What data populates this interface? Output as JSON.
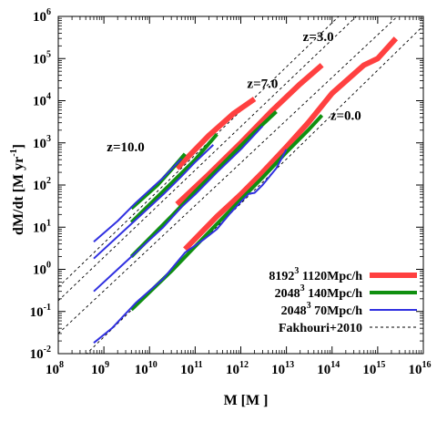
{
  "chart_data": {
    "type": "line",
    "xscale": "log",
    "yscale": "log",
    "xlim": [
      100000000.0,
      1e+16
    ],
    "ylim": [
      0.01,
      1000000.0
    ],
    "x_ticks": [
      {
        "base": "10",
        "exp": "8"
      },
      {
        "base": "10",
        "exp": "9"
      },
      {
        "base": "10",
        "exp": "10"
      },
      {
        "base": "10",
        "exp": "11"
      },
      {
        "base": "10",
        "exp": "12"
      },
      {
        "base": "10",
        "exp": "13"
      },
      {
        "base": "10",
        "exp": "14"
      },
      {
        "base": "10",
        "exp": "15"
      },
      {
        "base": "10",
        "exp": "16"
      }
    ],
    "y_ticks": [
      {
        "base": "10",
        "exp": "-2"
      },
      {
        "base": "10",
        "exp": "-1"
      },
      {
        "base": "10",
        "exp": "0"
      },
      {
        "base": "10",
        "exp": "1"
      },
      {
        "base": "10",
        "exp": "2"
      },
      {
        "base": "10",
        "exp": "3"
      },
      {
        "base": "10",
        "exp": "4"
      },
      {
        "base": "10",
        "exp": "5"
      },
      {
        "base": "10",
        "exp": "6"
      }
    ],
    "xlabel": "M [M  ]",
    "ylabel_main": "dM/dt [M   yr",
    "ylabel_exp": "-1",
    "ylabel_close": "]",
    "legend_position": "bottom-right",
    "annotations": [
      {
        "text": "z=10.0",
        "x": 3000000000.0,
        "y": 630
      },
      {
        "text": "z=7.0",
        "x": 3000000000000.0,
        "y": 20000
      },
      {
        "text": "z=3.0",
        "x": 50000000000000.0,
        "y": 260000
      },
      {
        "text": "z=0.0",
        "x": 200000000000000.0,
        "y": 3500
      }
    ],
    "legend": [
      {
        "base": "8192",
        "exp": "3",
        "rest": " 1120Mpc/h"
      },
      {
        "base": "2048",
        "exp": "3",
        "rest": " 140Mpc/h"
      },
      {
        "base": "2048",
        "exp": "3",
        "rest": " 70Mpc/h"
      },
      {
        "base": "",
        "exp": "",
        "rest": "Fakhouri+2010"
      }
    ],
    "series": [
      {
        "legend_index": 0,
        "color": "#ff4040",
        "width": 6,
        "dash": "",
        "redshift": "z=0.0",
        "points": [
          [
            60000000000.0,
            3.0
          ],
          [
            300000000000.0,
            18
          ],
          [
            1000000000000.0,
            60
          ],
          [
            3000000000000.0,
            200
          ],
          [
            10000000000000.0,
            800
          ],
          [
            30000000000000.0,
            3000
          ],
          [
            100000000000000.0,
            15000
          ],
          [
            500000000000000.0,
            70000
          ],
          [
            1000000000000000.0,
            100000
          ],
          [
            2500000000000000.0,
            300000
          ]
        ]
      },
      {
        "legend_index": 0,
        "color": "#ff4040",
        "width": 6,
        "dash": "",
        "redshift": "z=3.0",
        "points": [
          [
            40000000000.0,
            35
          ],
          [
            200000000000.0,
            180
          ],
          [
            1000000000000.0,
            1000
          ],
          [
            5000000000000.0,
            6000
          ],
          [
            20000000000000.0,
            25000
          ],
          [
            60000000000000.0,
            70000
          ]
        ]
      },
      {
        "legend_index": 0,
        "color": "#ff4040",
        "width": 6,
        "dash": "",
        "redshift": "z=7.0",
        "points": [
          [
            40000000000.0,
            250
          ],
          [
            200000000000.0,
            1500
          ],
          [
            700000000000.0,
            5000
          ],
          [
            2000000000000.0,
            11000
          ]
        ]
      },
      {
        "legend_index": 1,
        "color": "#109010",
        "width": 4,
        "dash": "",
        "redshift": "z=0.0",
        "points": [
          [
            4000000000.0,
            0.11
          ],
          [
            30000000000.0,
            0.9
          ],
          [
            100000000000.0,
            3.5
          ],
          [
            300000000000.0,
            12
          ],
          [
            1000000000000.0,
            45
          ],
          [
            3000000000000.0,
            150
          ],
          [
            10000000000000.0,
            600
          ],
          [
            30000000000000.0,
            2000
          ],
          [
            60000000000000.0,
            4500
          ]
        ]
      },
      {
        "legend_index": 1,
        "color": "#109010",
        "width": 4,
        "dash": "",
        "redshift": "z=3.0",
        "points": [
          [
            4000000000.0,
            2.0
          ],
          [
            30000000000.0,
            18
          ],
          [
            100000000000.0,
            70
          ],
          [
            500000000000.0,
            400
          ],
          [
            2000000000000.0,
            1800
          ],
          [
            6000000000000.0,
            5500
          ]
        ]
      },
      {
        "legend_index": 1,
        "color": "#109010",
        "width": 4,
        "dash": "",
        "redshift": "z=7.0",
        "points": [
          [
            4000000000.0,
            13
          ],
          [
            30000000000.0,
            110
          ],
          [
            100000000000.0,
            400
          ],
          [
            300000000000.0,
            1600
          ]
        ]
      },
      {
        "legend_index": 1,
        "color": "#109010",
        "width": 4,
        "dash": "",
        "redshift": "z=10.0",
        "points": [
          [
            4000000000.0,
            28
          ],
          [
            15000000000.0,
            100
          ],
          [
            30000000000.0,
            230
          ],
          [
            60000000000.0,
            550
          ]
        ]
      },
      {
        "legend_index": 2,
        "color": "#3030e0",
        "width": 2,
        "dash": "",
        "redshift": "z=0.0",
        "points": [
          [
            600000000.0,
            0.018
          ],
          [
            1500000000.0,
            0.04
          ],
          [
            5000000000.0,
            0.16
          ],
          [
            20000000000.0,
            0.6
          ],
          [
            60000000000.0,
            2.5
          ],
          [
            150000000000.0,
            5
          ],
          [
            300000000000.0,
            9
          ],
          [
            600000000000.0,
            22
          ],
          [
            1000000000000.0,
            40
          ],
          [
            1500000000000.0,
            62
          ],
          [
            2000000000000.0,
            65
          ],
          [
            3000000000000.0,
            100
          ],
          [
            6000000000000.0,
            250
          ],
          [
            10000000000000.0,
            700
          ]
        ]
      },
      {
        "legend_index": 2,
        "color": "#3030e0",
        "width": 2,
        "dash": "",
        "redshift": "z=3.0",
        "points": [
          [
            600000000.0,
            0.3
          ],
          [
            2000000000.0,
            1.0
          ],
          [
            5000000000.0,
            2.5
          ],
          [
            20000000000.0,
            10
          ],
          [
            50000000000.0,
            30
          ],
          [
            100000000000.0,
            60
          ],
          [
            300000000000.0,
            200
          ],
          [
            1000000000000.0,
            700
          ],
          [
            3000000000000.0,
            2500
          ]
        ]
      },
      {
        "legend_index": 2,
        "color": "#3030e0",
        "width": 2,
        "dash": "",
        "redshift": "z=7.0",
        "points": [
          [
            600000000.0,
            1.8
          ],
          [
            2000000000.0,
            6
          ],
          [
            5000000000.0,
            15
          ],
          [
            20000000000.0,
            60
          ],
          [
            50000000000.0,
            160
          ],
          [
            100000000000.0,
            350
          ],
          [
            250000000000.0,
            900
          ]
        ]
      },
      {
        "legend_index": 2,
        "color": "#3030e0",
        "width": 2,
        "dash": "",
        "redshift": "z=10.0",
        "points": [
          [
            600000000.0,
            4.5
          ],
          [
            2000000000.0,
            14
          ],
          [
            5000000000.0,
            38
          ],
          [
            20000000000.0,
            150
          ],
          [
            50000000000.0,
            420
          ]
        ]
      },
      {
        "legend_index": 3,
        "color": "#000000",
        "width": 0.9,
        "dash": "3,3",
        "redshift": "z=0.0",
        "points": [
          [
            100000000.0,
            0.0022
          ],
          [
            1e+16,
            600000
          ]
        ]
      },
      {
        "legend_index": 3,
        "color": "#000000",
        "width": 0.9,
        "dash": "3,3",
        "redshift": "z=3.0",
        "points": [
          [
            100000000.0,
            0.03
          ],
          [
            2700000000000000.0,
            1000000.0
          ]
        ]
      },
      {
        "legend_index": 3,
        "color": "#000000",
        "width": 0.9,
        "dash": "3,3",
        "redshift": "z=7.0",
        "points": [
          [
            100000000.0,
            0.18
          ],
          [
            340000000000000.0,
            1000000.0
          ]
        ]
      },
      {
        "legend_index": 3,
        "color": "#000000",
        "width": 0.9,
        "dash": "3,3",
        "redshift": "z=10.0",
        "points": [
          [
            100000000.0,
            0.38
          ],
          [
            140000000000000.0,
            1000000.0
          ]
        ]
      }
    ]
  }
}
